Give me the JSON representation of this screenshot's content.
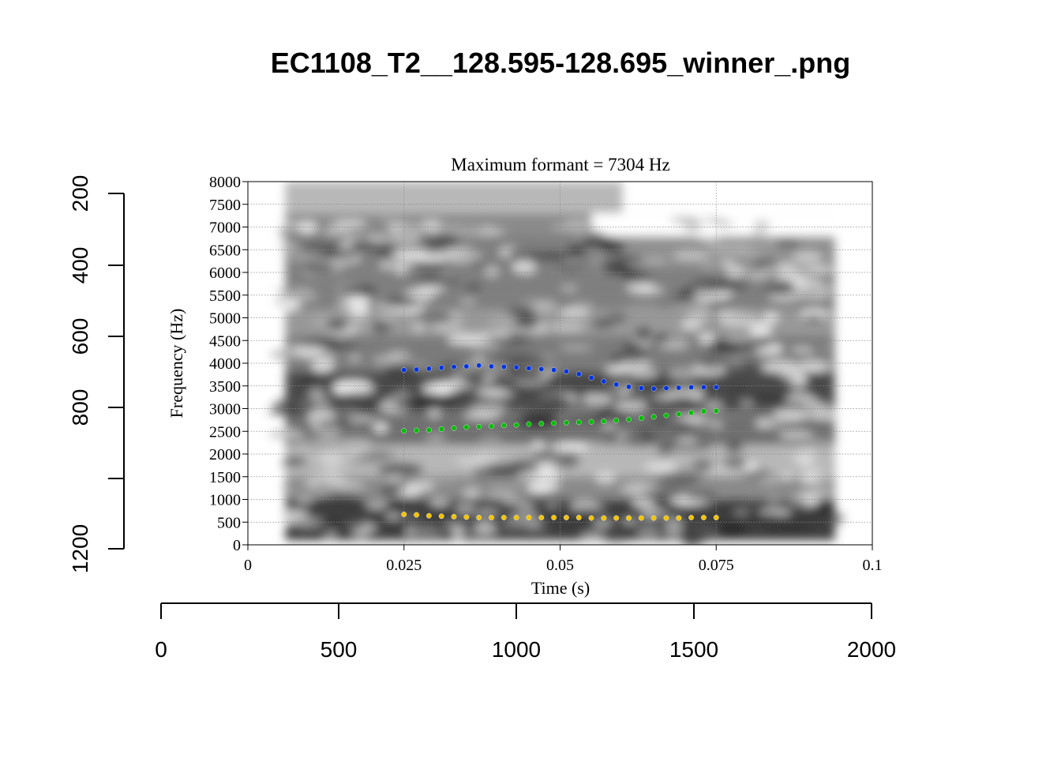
{
  "page_title": "EC1108_T2__128.595-128.695_winner_.png",
  "chart_data": {
    "type": "scatter",
    "title": "Maximum formant = 7304 Hz",
    "xlabel": "Time (s)",
    "ylabel": "Frequency (Hz)",
    "xlim": [
      0,
      0.1
    ],
    "ylim": [
      0,
      8000
    ],
    "x_ticks": [
      "0",
      "0.025",
      "0.05",
      "0.075",
      "0.1"
    ],
    "y_ticks": [
      "0",
      "500",
      "1000",
      "1500",
      "2000",
      "2500",
      "3000",
      "3500",
      "4000",
      "4500",
      "5000",
      "5500",
      "6000",
      "6500",
      "7000",
      "7500",
      "8000"
    ],
    "grid": true,
    "spectrogram_time_range": [
      0.006,
      0.094
    ],
    "series": [
      {
        "color": "#0033dd",
        "x": [
          0.025,
          0.027,
          0.029,
          0.031,
          0.033,
          0.035,
          0.037,
          0.039,
          0.041,
          0.043,
          0.045,
          0.047,
          0.049,
          0.051,
          0.053,
          0.055,
          0.057,
          0.059,
          0.061,
          0.063,
          0.065,
          0.067,
          0.069,
          0.071,
          0.073,
          0.075
        ],
        "y": [
          3850,
          3860,
          3880,
          3900,
          3920,
          3930,
          3950,
          3930,
          3920,
          3910,
          3890,
          3870,
          3850,
          3820,
          3760,
          3680,
          3600,
          3530,
          3480,
          3450,
          3440,
          3450,
          3460,
          3470,
          3470,
          3470
        ]
      },
      {
        "color": "#00bb00",
        "x": [
          0.025,
          0.027,
          0.029,
          0.031,
          0.033,
          0.035,
          0.037,
          0.039,
          0.041,
          0.043,
          0.045,
          0.047,
          0.049,
          0.051,
          0.053,
          0.055,
          0.057,
          0.059,
          0.061,
          0.063,
          0.065,
          0.067,
          0.069,
          0.071,
          0.073,
          0.075
        ],
        "y": [
          2510,
          2520,
          2530,
          2550,
          2570,
          2590,
          2600,
          2610,
          2630,
          2640,
          2660,
          2670,
          2680,
          2690,
          2700,
          2710,
          2720,
          2740,
          2760,
          2790,
          2820,
          2850,
          2880,
          2910,
          2940,
          2950
        ]
      },
      {
        "color": "#f2c200",
        "x": [
          0.025,
          0.027,
          0.029,
          0.031,
          0.033,
          0.035,
          0.037,
          0.039,
          0.041,
          0.043,
          0.045,
          0.047,
          0.049,
          0.051,
          0.053,
          0.055,
          0.057,
          0.059,
          0.061,
          0.063,
          0.065,
          0.067,
          0.069,
          0.071,
          0.073,
          0.075
        ],
        "y": [
          670,
          660,
          640,
          630,
          620,
          610,
          600,
          600,
          600,
          600,
          600,
          600,
          600,
          600,
          600,
          590,
          590,
          590,
          590,
          590,
          590,
          590,
          590,
          600,
          600,
          600
        ]
      }
    ]
  },
  "outer_axes": {
    "left_ticks": [
      "200",
      "400",
      "600",
      "800",
      "1200"
    ],
    "bottom_ticks": [
      "0",
      "500",
      "1000",
      "1500",
      "2000"
    ]
  }
}
